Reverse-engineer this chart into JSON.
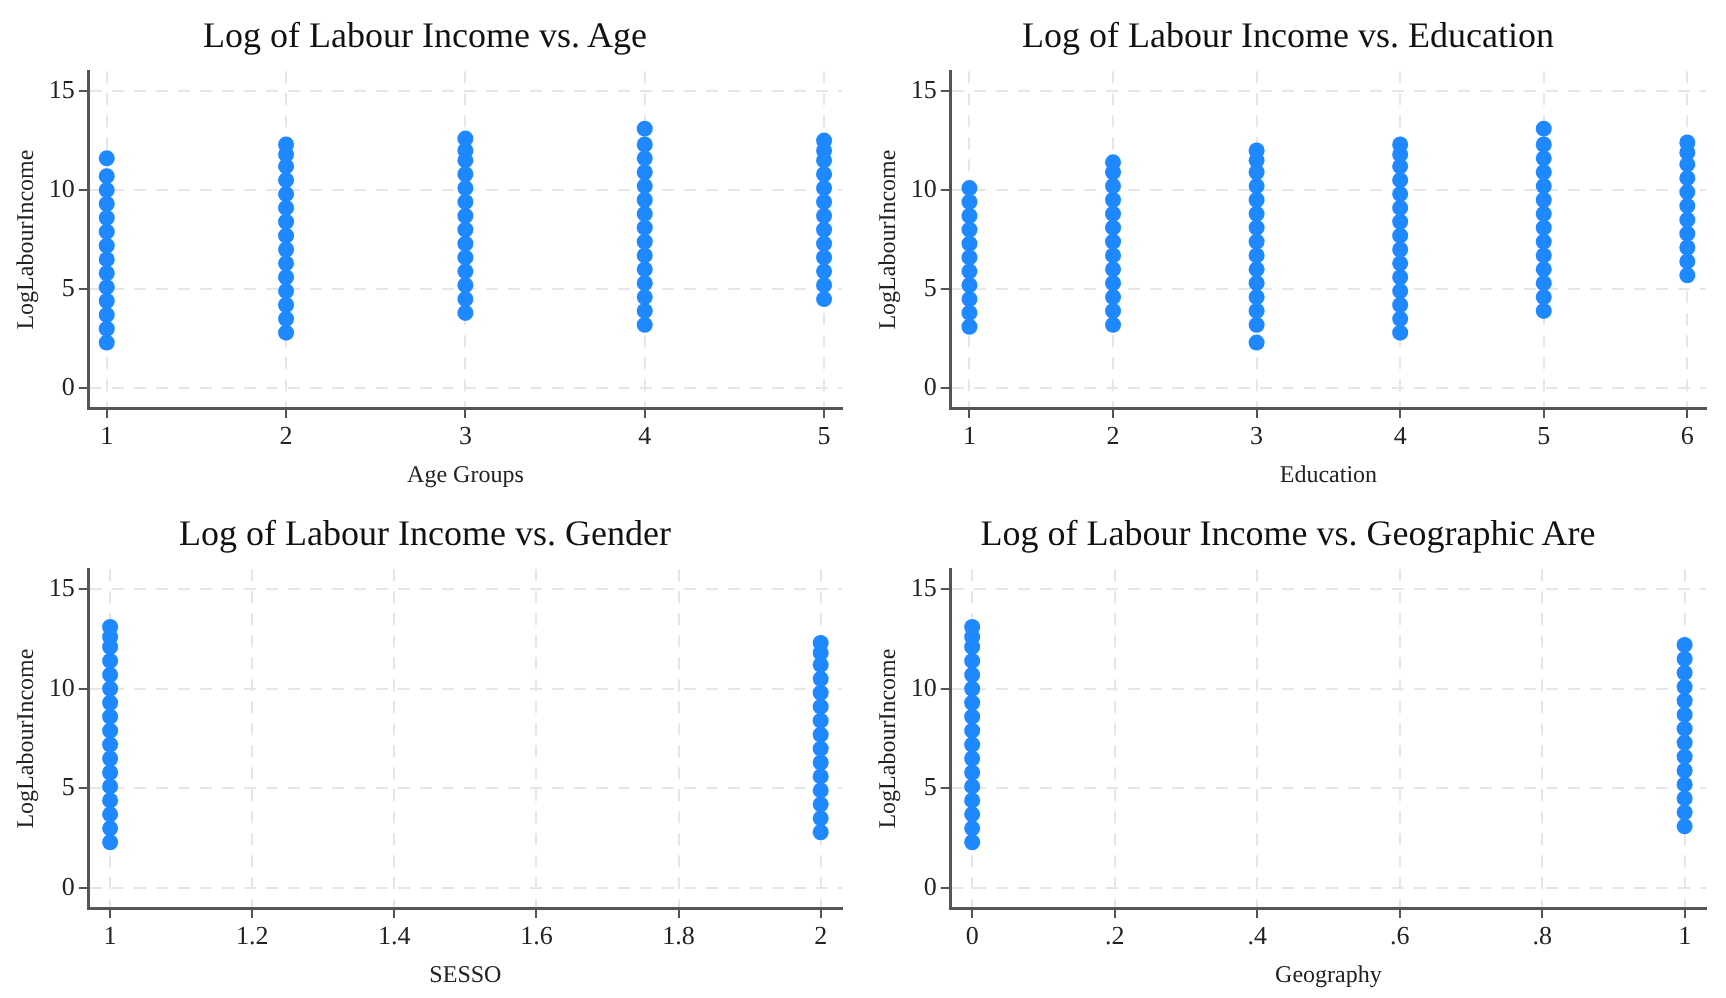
{
  "chart_data": [
    {
      "type": "scatter",
      "title": "Log of Labour Income vs. Age",
      "xlabel": "Age Groups",
      "ylabel": "LogLabourIncome",
      "xlim": [
        0.9,
        5.1
      ],
      "xticks": [
        1,
        2,
        3,
        4,
        5
      ],
      "ylim": [
        -1,
        16
      ],
      "yticks": [
        0,
        5,
        10,
        15
      ],
      "grid": true,
      "marker": "circle",
      "series": [
        {
          "color": "#1e88ff",
          "x": [
            1,
            1,
            1,
            1,
            1,
            1,
            1,
            1,
            1,
            1,
            1,
            1,
            1,
            1,
            2,
            2,
            2,
            2,
            2,
            2,
            2,
            2,
            2,
            2,
            2,
            2,
            2,
            2,
            2,
            3,
            3,
            3,
            3,
            3,
            3,
            3,
            3,
            3,
            3,
            3,
            3,
            3,
            3,
            4,
            4,
            4,
            4,
            4,
            4,
            4,
            4,
            4,
            4,
            4,
            4,
            4,
            4,
            4,
            5,
            5,
            5,
            5,
            5,
            5,
            5,
            5,
            5,
            5,
            5,
            5,
            5
          ],
          "values": [
            2.3,
            3.0,
            3.7,
            4.4,
            5.1,
            5.8,
            6.5,
            7.2,
            7.9,
            8.6,
            9.3,
            10.0,
            10.7,
            11.6,
            2.8,
            3.5,
            4.2,
            4.9,
            5.6,
            6.3,
            7.0,
            7.7,
            8.4,
            9.1,
            9.8,
            10.5,
            11.2,
            11.8,
            12.3,
            3.8,
            4.5,
            5.2,
            5.9,
            6.6,
            7.3,
            8.0,
            8.7,
            9.4,
            10.1,
            10.8,
            11.5,
            12.0,
            12.6,
            3.2,
            3.9,
            4.6,
            5.3,
            6.0,
            6.7,
            7.4,
            8.1,
            8.8,
            9.5,
            10.2,
            10.9,
            11.6,
            12.3,
            13.1,
            4.5,
            5.2,
            5.9,
            6.6,
            7.3,
            8.0,
            8.7,
            9.4,
            10.1,
            10.8,
            11.5,
            12.0,
            12.5
          ]
        }
      ]
    },
    {
      "type": "scatter",
      "title": "Log of Labour Income vs. Education",
      "xlabel": "Education",
      "ylabel": "LogLabourIncome",
      "xlim": [
        0.87,
        6.13
      ],
      "xticks": [
        1,
        2,
        3,
        4,
        5,
        6
      ],
      "ylim": [
        -1,
        16
      ],
      "yticks": [
        0,
        5,
        10,
        15
      ],
      "grid": true,
      "marker": "circle",
      "series": [
        {
          "color": "#1e88ff",
          "x": [
            1,
            1,
            1,
            1,
            1,
            1,
            1,
            1,
            1,
            1,
            1,
            2,
            2,
            2,
            2,
            2,
            2,
            2,
            2,
            2,
            2,
            2,
            2,
            2,
            3,
            3,
            3,
            3,
            3,
            3,
            3,
            3,
            3,
            3,
            3,
            3,
            3,
            3,
            3,
            4,
            4,
            4,
            4,
            4,
            4,
            4,
            4,
            4,
            4,
            4,
            4,
            4,
            4,
            4,
            5,
            5,
            5,
            5,
            5,
            5,
            5,
            5,
            5,
            5,
            5,
            5,
            5,
            5,
            6,
            6,
            6,
            6,
            6,
            6,
            6,
            6,
            6,
            6,
            6
          ],
          "values": [
            3.1,
            3.8,
            4.5,
            5.2,
            5.9,
            6.6,
            7.3,
            8.0,
            8.7,
            9.4,
            10.1,
            3.2,
            3.9,
            4.6,
            5.3,
            6.0,
            6.7,
            7.4,
            8.1,
            8.8,
            9.5,
            10.2,
            10.9,
            11.4,
            2.3,
            3.2,
            3.9,
            4.6,
            5.3,
            6.0,
            6.7,
            7.4,
            8.1,
            8.8,
            9.5,
            10.2,
            10.9,
            11.5,
            12.0,
            2.8,
            3.5,
            4.2,
            4.9,
            5.6,
            6.3,
            7.0,
            7.7,
            8.4,
            9.1,
            9.8,
            10.5,
            11.2,
            11.8,
            12.3,
            3.9,
            4.6,
            5.3,
            6.0,
            6.7,
            7.4,
            8.1,
            8.8,
            9.5,
            10.2,
            10.9,
            11.6,
            12.3,
            13.1,
            5.7,
            6.4,
            7.1,
            7.8,
            8.5,
            9.2,
            9.9,
            10.6,
            11.3,
            11.9,
            12.4
          ]
        }
      ]
    },
    {
      "type": "scatter",
      "title": "Log of Labour Income vs. Gender",
      "xlabel": "SESSO",
      "ylabel": "LogLabourIncome",
      "xlim": [
        0.97,
        2.03
      ],
      "xticks": [
        1,
        1.2,
        1.4,
        1.6,
        1.8,
        2
      ],
      "ylim": [
        -1,
        16
      ],
      "yticks": [
        0,
        5,
        10,
        15
      ],
      "grid": true,
      "marker": "circle",
      "series": [
        {
          "color": "#1e88ff",
          "x": [
            1,
            1,
            1,
            1,
            1,
            1,
            1,
            1,
            1,
            1,
            1,
            1,
            1,
            1,
            1,
            1,
            1,
            2,
            2,
            2,
            2,
            2,
            2,
            2,
            2,
            2,
            2,
            2,
            2,
            2,
            2,
            2
          ],
          "values": [
            2.3,
            3.0,
            3.7,
            4.4,
            5.1,
            5.8,
            6.5,
            7.2,
            7.9,
            8.6,
            9.3,
            10.0,
            10.7,
            11.4,
            12.1,
            12.6,
            13.1,
            2.8,
            3.5,
            4.2,
            4.9,
            5.6,
            6.3,
            7.0,
            7.7,
            8.4,
            9.1,
            9.8,
            10.5,
            11.2,
            11.8,
            12.3
          ]
        }
      ]
    },
    {
      "type": "scatter",
      "title": "Log of Labour Income vs. Geographic Are",
      "xlabel": "Geography",
      "ylabel": "LogLabourIncome",
      "xlim": [
        -0.03,
        1.03
      ],
      "xticks": [
        0,
        {
          "value": 0.2,
          "label": ".2"
        },
        {
          "value": 0.4,
          "label": ".4"
        },
        {
          "value": 0.6,
          "label": ".6"
        },
        {
          "value": 0.8,
          "label": ".8"
        },
        1
      ],
      "ylim": [
        -1,
        16
      ],
      "yticks": [
        0,
        5,
        10,
        15
      ],
      "grid": true,
      "marker": "circle",
      "series": [
        {
          "color": "#1e88ff",
          "x": [
            0,
            0,
            0,
            0,
            0,
            0,
            0,
            0,
            0,
            0,
            0,
            0,
            0,
            0,
            0,
            0,
            0,
            1,
            1,
            1,
            1,
            1,
            1,
            1,
            1,
            1,
            1,
            1,
            1,
            1,
            1
          ],
          "values": [
            2.3,
            3.0,
            3.7,
            4.4,
            5.1,
            5.8,
            6.5,
            7.2,
            7.9,
            8.6,
            9.3,
            10.0,
            10.7,
            11.4,
            12.1,
            12.6,
            13.1,
            3.1,
            3.8,
            4.5,
            5.2,
            5.9,
            6.6,
            7.3,
            8.0,
            8.7,
            9.4,
            10.1,
            10.8,
            11.5,
            12.2
          ]
        }
      ]
    }
  ]
}
